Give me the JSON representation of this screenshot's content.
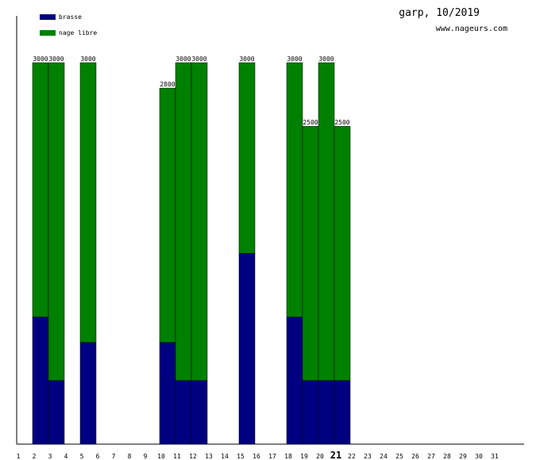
{
  "header": {
    "title": "garp, 10/2019",
    "site": "www.nageurs.com"
  },
  "legend": [
    {
      "label": "brasse",
      "color": "#000080"
    },
    {
      "label": "nage libre",
      "color": "#008000"
    }
  ],
  "chart_data": {
    "type": "bar",
    "stacked": true,
    "categories": [
      "1",
      "2",
      "3",
      "4",
      "5",
      "6",
      "7",
      "8",
      "9",
      "10",
      "11",
      "12",
      "13",
      "14",
      "15",
      "16",
      "17",
      "18",
      "19",
      "20",
      "21",
      "22",
      "23",
      "24",
      "25",
      "26",
      "27",
      "28",
      "29",
      "30",
      "31"
    ],
    "highlighted_category": "21",
    "series": [
      {
        "name": "brasse",
        "color": "#000080",
        "values": [
          0,
          1000,
          500,
          0,
          800,
          0,
          0,
          0,
          0,
          800,
          500,
          500,
          0,
          0,
          1500,
          0,
          0,
          1000,
          500,
          500,
          500,
          0,
          0,
          0,
          0,
          0,
          0,
          0,
          0,
          0,
          0
        ]
      },
      {
        "name": "nage libre",
        "color": "#008000",
        "values": [
          0,
          2000,
          2500,
          0,
          2200,
          0,
          0,
          0,
          0,
          2000,
          2500,
          2500,
          0,
          0,
          1500,
          0,
          0,
          2000,
          2000,
          2500,
          2000,
          0,
          0,
          0,
          0,
          0,
          0,
          0,
          0,
          0,
          0
        ]
      }
    ],
    "totals": [
      null,
      "3000",
      "3000",
      null,
      "3000",
      null,
      null,
      null,
      null,
      "2800",
      "3000",
      "3000",
      null,
      null,
      "3000",
      null,
      null,
      "3000",
      "2500",
      "3000",
      "2500",
      null,
      null,
      null,
      null,
      null,
      null,
      null,
      null,
      null,
      null
    ],
    "ylim": [
      0,
      3000
    ],
    "grid": false,
    "legend_position": "top-left"
  }
}
